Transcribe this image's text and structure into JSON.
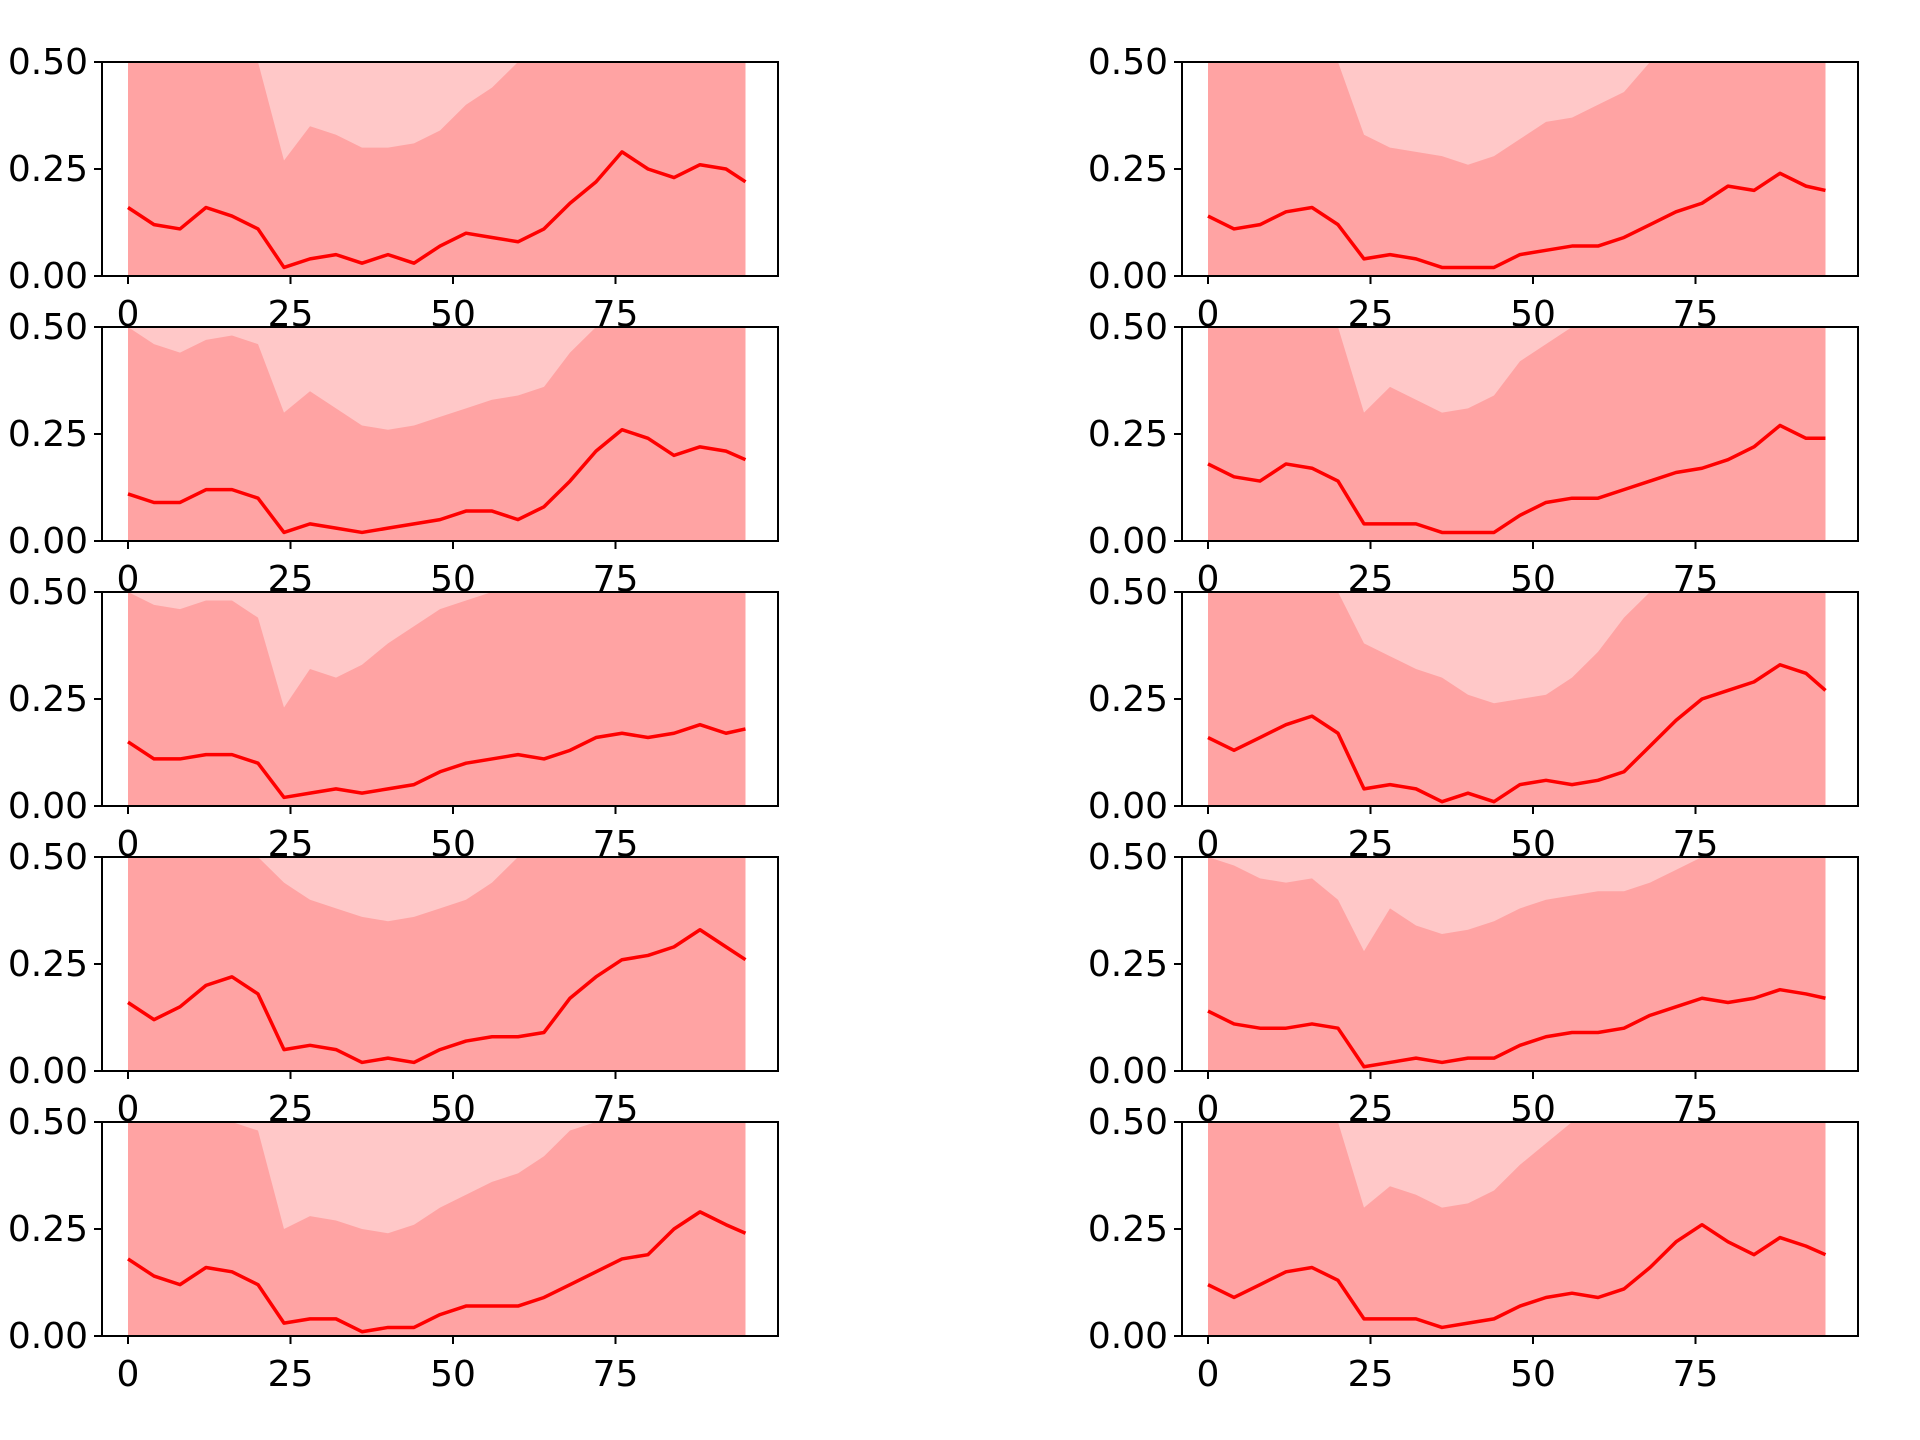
{
  "chart_data": [
    {
      "type": "line",
      "title": "",
      "xlabel": "",
      "ylabel": "",
      "ylim": [
        0,
        0.5
      ],
      "xlim": [
        -4,
        100
      ],
      "xticks": [
        0,
        25,
        50,
        75
      ],
      "yticks": [
        "0.00",
        "0.25",
        "0.50"
      ],
      "grid": false,
      "legend": "none",
      "series_color": "#ff0000",
      "band_inner_color": "#ffa3a3",
      "band_outer_color": "#ffc8c8",
      "x": [
        0,
        4,
        8,
        12,
        16,
        20,
        24,
        28,
        32,
        36,
        40,
        44,
        48,
        52,
        56,
        60,
        64,
        68,
        72,
        76,
        80,
        84,
        88,
        92,
        95
      ],
      "y": [
        0.16,
        0.12,
        0.11,
        0.16,
        0.14,
        0.11,
        0.02,
        0.04,
        0.05,
        0.03,
        0.05,
        0.03,
        0.07,
        0.1,
        0.09,
        0.08,
        0.11,
        0.17,
        0.22,
        0.29,
        0.25,
        0.23,
        0.26,
        0.25,
        0.22
      ],
      "band_outer_upper": [
        0.5,
        0.5,
        0.5,
        0.5,
        0.5,
        0.5,
        0.27,
        0.35,
        0.33,
        0.3,
        0.3,
        0.31,
        0.34,
        0.4,
        0.44,
        0.5,
        0.5,
        0.5,
        0.5,
        0.5,
        0.5,
        0.5,
        0.5,
        0.5,
        0.5
      ]
    },
    {
      "type": "line",
      "title": "",
      "xlabel": "",
      "ylabel": "",
      "ylim": [
        0,
        0.5
      ],
      "xlim": [
        -4,
        100
      ],
      "xticks": [
        0,
        25,
        50,
        75
      ],
      "yticks": [
        "0.00",
        "0.25",
        "0.50"
      ],
      "grid": false,
      "legend": "none",
      "series_color": "#ff0000",
      "band_inner_color": "#ffa3a3",
      "band_outer_color": "#ffc8c8",
      "x": [
        0,
        4,
        8,
        12,
        16,
        20,
        24,
        28,
        32,
        36,
        40,
        44,
        48,
        52,
        56,
        60,
        64,
        68,
        72,
        76,
        80,
        84,
        88,
        92,
        95
      ],
      "y": [
        0.14,
        0.11,
        0.12,
        0.15,
        0.16,
        0.12,
        0.04,
        0.05,
        0.04,
        0.02,
        0.02,
        0.02,
        0.05,
        0.06,
        0.07,
        0.07,
        0.09,
        0.12,
        0.15,
        0.17,
        0.21,
        0.2,
        0.24,
        0.21,
        0.2
      ],
      "band_outer_upper": [
        0.5,
        0.5,
        0.5,
        0.5,
        0.5,
        0.5,
        0.33,
        0.3,
        0.29,
        0.28,
        0.26,
        0.28,
        0.32,
        0.36,
        0.37,
        0.4,
        0.43,
        0.5,
        0.5,
        0.5,
        0.5,
        0.5,
        0.5,
        0.5,
        0.5
      ]
    },
    {
      "type": "line",
      "title": "",
      "xlabel": "",
      "ylabel": "",
      "ylim": [
        0,
        0.5
      ],
      "xlim": [
        -4,
        100
      ],
      "xticks": [
        0,
        25,
        50,
        75
      ],
      "yticks": [
        "0.00",
        "0.25",
        "0.50"
      ],
      "grid": false,
      "legend": "none",
      "series_color": "#ff0000",
      "band_inner_color": "#ffa3a3",
      "band_outer_color": "#ffc8c8",
      "x": [
        0,
        4,
        8,
        12,
        16,
        20,
        24,
        28,
        32,
        36,
        40,
        44,
        48,
        52,
        56,
        60,
        64,
        68,
        72,
        76,
        80,
        84,
        88,
        92,
        95
      ],
      "y": [
        0.11,
        0.09,
        0.09,
        0.12,
        0.12,
        0.1,
        0.02,
        0.04,
        0.03,
        0.02,
        0.03,
        0.04,
        0.05,
        0.07,
        0.07,
        0.05,
        0.08,
        0.14,
        0.21,
        0.26,
        0.24,
        0.2,
        0.22,
        0.21,
        0.19
      ],
      "band_outer_upper": [
        0.5,
        0.46,
        0.44,
        0.47,
        0.48,
        0.46,
        0.3,
        0.35,
        0.31,
        0.27,
        0.26,
        0.27,
        0.29,
        0.31,
        0.33,
        0.34,
        0.36,
        0.44,
        0.5,
        0.5,
        0.5,
        0.5,
        0.5,
        0.5,
        0.5
      ]
    },
    {
      "type": "line",
      "title": "",
      "xlabel": "",
      "ylabel": "",
      "ylim": [
        0,
        0.5
      ],
      "xlim": [
        -4,
        100
      ],
      "xticks": [
        0,
        25,
        50,
        75
      ],
      "yticks": [
        "0.00",
        "0.25",
        "0.50"
      ],
      "grid": false,
      "legend": "none",
      "series_color": "#ff0000",
      "band_inner_color": "#ffa3a3",
      "band_outer_color": "#ffc8c8",
      "x": [
        0,
        4,
        8,
        12,
        16,
        20,
        24,
        28,
        32,
        36,
        40,
        44,
        48,
        52,
        56,
        60,
        64,
        68,
        72,
        76,
        80,
        84,
        88,
        92,
        95
      ],
      "y": [
        0.18,
        0.15,
        0.14,
        0.18,
        0.17,
        0.14,
        0.04,
        0.04,
        0.04,
        0.02,
        0.02,
        0.02,
        0.06,
        0.09,
        0.1,
        0.1,
        0.12,
        0.14,
        0.16,
        0.17,
        0.19,
        0.22,
        0.27,
        0.24,
        0.24
      ],
      "band_outer_upper": [
        0.5,
        0.5,
        0.5,
        0.5,
        0.5,
        0.5,
        0.3,
        0.36,
        0.33,
        0.3,
        0.31,
        0.34,
        0.42,
        0.46,
        0.5,
        0.5,
        0.5,
        0.5,
        0.5,
        0.5,
        0.5,
        0.5,
        0.5,
        0.5,
        0.5
      ]
    },
    {
      "type": "line",
      "title": "",
      "xlabel": "",
      "ylabel": "",
      "ylim": [
        0,
        0.5
      ],
      "xlim": [
        -4,
        100
      ],
      "xticks": [
        0,
        25,
        50,
        75
      ],
      "yticks": [
        "0.00",
        "0.25",
        "0.50"
      ],
      "grid": false,
      "legend": "none",
      "series_color": "#ff0000",
      "band_inner_color": "#ffa3a3",
      "band_outer_color": "#ffc8c8",
      "x": [
        0,
        4,
        8,
        12,
        16,
        20,
        24,
        28,
        32,
        36,
        40,
        44,
        48,
        52,
        56,
        60,
        64,
        68,
        72,
        76,
        80,
        84,
        88,
        92,
        95
      ],
      "y": [
        0.15,
        0.11,
        0.11,
        0.12,
        0.12,
        0.1,
        0.02,
        0.03,
        0.04,
        0.03,
        0.04,
        0.05,
        0.08,
        0.1,
        0.11,
        0.12,
        0.11,
        0.13,
        0.16,
        0.17,
        0.16,
        0.17,
        0.19,
        0.17,
        0.18
      ],
      "band_outer_upper": [
        0.5,
        0.47,
        0.46,
        0.48,
        0.48,
        0.44,
        0.23,
        0.32,
        0.3,
        0.33,
        0.38,
        0.42,
        0.46,
        0.48,
        0.5,
        0.5,
        0.5,
        0.5,
        0.5,
        0.5,
        0.5,
        0.5,
        0.5,
        0.5,
        0.5
      ]
    },
    {
      "type": "line",
      "title": "",
      "xlabel": "",
      "ylabel": "",
      "ylim": [
        0,
        0.5
      ],
      "xlim": [
        -4,
        100
      ],
      "xticks": [
        0,
        25,
        50,
        75
      ],
      "yticks": [
        "0.00",
        "0.25",
        "0.50"
      ],
      "grid": false,
      "legend": "none",
      "series_color": "#ff0000",
      "band_inner_color": "#ffa3a3",
      "band_outer_color": "#ffc8c8",
      "x": [
        0,
        4,
        8,
        12,
        16,
        20,
        24,
        28,
        32,
        36,
        40,
        44,
        48,
        52,
        56,
        60,
        64,
        68,
        72,
        76,
        80,
        84,
        88,
        92,
        95
      ],
      "y": [
        0.16,
        0.13,
        0.16,
        0.19,
        0.21,
        0.17,
        0.04,
        0.05,
        0.04,
        0.01,
        0.03,
        0.01,
        0.05,
        0.06,
        0.05,
        0.06,
        0.08,
        0.14,
        0.2,
        0.25,
        0.27,
        0.29,
        0.33,
        0.31,
        0.27
      ],
      "band_outer_upper": [
        0.5,
        0.5,
        0.5,
        0.5,
        0.5,
        0.5,
        0.38,
        0.35,
        0.32,
        0.3,
        0.26,
        0.24,
        0.25,
        0.26,
        0.3,
        0.36,
        0.44,
        0.5,
        0.5,
        0.5,
        0.5,
        0.5,
        0.5,
        0.5,
        0.5
      ]
    },
    {
      "type": "line",
      "title": "",
      "xlabel": "",
      "ylabel": "",
      "ylim": [
        0,
        0.5
      ],
      "xlim": [
        -4,
        100
      ],
      "xticks": [
        0,
        25,
        50,
        75
      ],
      "yticks": [
        "0.00",
        "0.25",
        "0.50"
      ],
      "grid": false,
      "legend": "none",
      "series_color": "#ff0000",
      "band_inner_color": "#ffa3a3",
      "band_outer_color": "#ffc8c8",
      "x": [
        0,
        4,
        8,
        12,
        16,
        20,
        24,
        28,
        32,
        36,
        40,
        44,
        48,
        52,
        56,
        60,
        64,
        68,
        72,
        76,
        80,
        84,
        88,
        92,
        95
      ],
      "y": [
        0.16,
        0.12,
        0.15,
        0.2,
        0.22,
        0.18,
        0.05,
        0.06,
        0.05,
        0.02,
        0.03,
        0.02,
        0.05,
        0.07,
        0.08,
        0.08,
        0.09,
        0.17,
        0.22,
        0.26,
        0.27,
        0.29,
        0.33,
        0.29,
        0.26
      ],
      "band_outer_upper": [
        0.5,
        0.5,
        0.5,
        0.5,
        0.5,
        0.5,
        0.44,
        0.4,
        0.38,
        0.36,
        0.35,
        0.36,
        0.38,
        0.4,
        0.44,
        0.5,
        0.5,
        0.5,
        0.5,
        0.5,
        0.5,
        0.5,
        0.5,
        0.5,
        0.5
      ]
    },
    {
      "type": "line",
      "title": "",
      "xlabel": "",
      "ylabel": "",
      "ylim": [
        0,
        0.5
      ],
      "xlim": [
        -4,
        100
      ],
      "xticks": [
        0,
        25,
        50,
        75
      ],
      "yticks": [
        "0.00",
        "0.25",
        "0.50"
      ],
      "grid": false,
      "legend": "none",
      "series_color": "#ff0000",
      "band_inner_color": "#ffa3a3",
      "band_outer_color": "#ffc8c8",
      "x": [
        0,
        4,
        8,
        12,
        16,
        20,
        24,
        28,
        32,
        36,
        40,
        44,
        48,
        52,
        56,
        60,
        64,
        68,
        72,
        76,
        80,
        84,
        88,
        92,
        95
      ],
      "y": [
        0.14,
        0.11,
        0.1,
        0.1,
        0.11,
        0.1,
        0.01,
        0.02,
        0.03,
        0.02,
        0.03,
        0.03,
        0.06,
        0.08,
        0.09,
        0.09,
        0.1,
        0.13,
        0.15,
        0.17,
        0.16,
        0.17,
        0.19,
        0.18,
        0.17
      ],
      "band_outer_upper": [
        0.5,
        0.48,
        0.45,
        0.44,
        0.45,
        0.4,
        0.28,
        0.38,
        0.34,
        0.32,
        0.33,
        0.35,
        0.38,
        0.4,
        0.41,
        0.42,
        0.42,
        0.44,
        0.47,
        0.5,
        0.5,
        0.5,
        0.5,
        0.5,
        0.5
      ]
    },
    {
      "type": "line",
      "title": "",
      "xlabel": "",
      "ylabel": "",
      "ylim": [
        0,
        0.5
      ],
      "xlim": [
        -4,
        100
      ],
      "xticks": [
        0,
        25,
        50,
        75
      ],
      "yticks": [
        "0.00",
        "0.25",
        "0.50"
      ],
      "grid": false,
      "legend": "none",
      "series_color": "#ff0000",
      "band_inner_color": "#ffa3a3",
      "band_outer_color": "#ffc8c8",
      "x": [
        0,
        4,
        8,
        12,
        16,
        20,
        24,
        28,
        32,
        36,
        40,
        44,
        48,
        52,
        56,
        60,
        64,
        68,
        72,
        76,
        80,
        84,
        88,
        92,
        95
      ],
      "y": [
        0.18,
        0.14,
        0.12,
        0.16,
        0.15,
        0.12,
        0.03,
        0.04,
        0.04,
        0.01,
        0.02,
        0.02,
        0.05,
        0.07,
        0.07,
        0.07,
        0.09,
        0.12,
        0.15,
        0.18,
        0.19,
        0.25,
        0.29,
        0.26,
        0.24
      ],
      "band_outer_upper": [
        0.5,
        0.5,
        0.5,
        0.5,
        0.5,
        0.48,
        0.25,
        0.28,
        0.27,
        0.25,
        0.24,
        0.26,
        0.3,
        0.33,
        0.36,
        0.38,
        0.42,
        0.48,
        0.5,
        0.5,
        0.5,
        0.5,
        0.5,
        0.5,
        0.5
      ]
    },
    {
      "type": "line",
      "title": "",
      "xlabel": "",
      "ylabel": "",
      "ylim": [
        0,
        0.5
      ],
      "xlim": [
        -4,
        100
      ],
      "xticks": [
        0,
        25,
        50,
        75
      ],
      "yticks": [
        "0.00",
        "0.25",
        "0.50"
      ],
      "grid": false,
      "legend": "none",
      "series_color": "#ff0000",
      "band_inner_color": "#ffa3a3",
      "band_outer_color": "#ffc8c8",
      "x": [
        0,
        4,
        8,
        12,
        16,
        20,
        24,
        28,
        32,
        36,
        40,
        44,
        48,
        52,
        56,
        60,
        64,
        68,
        72,
        76,
        80,
        84,
        88,
        92,
        95
      ],
      "y": [
        0.12,
        0.09,
        0.12,
        0.15,
        0.16,
        0.13,
        0.04,
        0.04,
        0.04,
        0.02,
        0.03,
        0.04,
        0.07,
        0.09,
        0.1,
        0.09,
        0.11,
        0.16,
        0.22,
        0.26,
        0.22,
        0.19,
        0.23,
        0.21,
        0.19
      ],
      "band_outer_upper": [
        0.5,
        0.5,
        0.5,
        0.5,
        0.5,
        0.5,
        0.3,
        0.35,
        0.33,
        0.3,
        0.31,
        0.34,
        0.4,
        0.45,
        0.5,
        0.5,
        0.5,
        0.5,
        0.5,
        0.5,
        0.5,
        0.5,
        0.5,
        0.5,
        0.5
      ]
    }
  ]
}
